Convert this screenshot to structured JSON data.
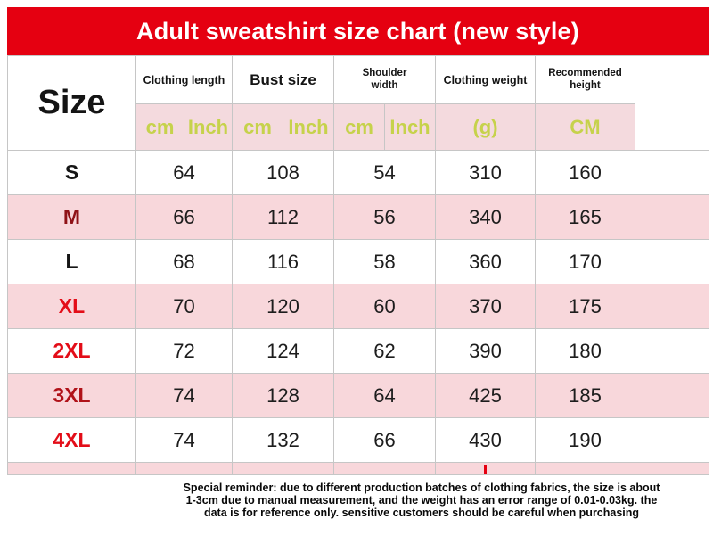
{
  "title": "Adult sweatshirt size chart (new style)",
  "chart_data": {
    "type": "table",
    "title": "Adult sweatshirt size chart (new style)",
    "corner_label": "Size",
    "column_groups": [
      {
        "label": "Clothing length",
        "units": [
          "cm",
          "Inch"
        ]
      },
      {
        "label": "Bust size",
        "units": [
          "cm",
          "Inch"
        ]
      },
      {
        "label": "Shoulder width",
        "units": [
          "cm",
          "Inch"
        ]
      },
      {
        "label": "Clothing weight",
        "units": [
          "(g)"
        ]
      },
      {
        "label": "Recommended height",
        "units": [
          "CM"
        ]
      }
    ],
    "rows": [
      {
        "size": "S",
        "values": [
          64,
          108,
          54,
          310,
          160
        ],
        "label_color": "#151515"
      },
      {
        "size": "M",
        "values": [
          66,
          112,
          56,
          340,
          165
        ],
        "label_color": "#8f1217"
      },
      {
        "size": "L",
        "values": [
          68,
          116,
          58,
          360,
          170
        ],
        "label_color": "#151515"
      },
      {
        "size": "XL",
        "values": [
          70,
          120,
          60,
          370,
          175
        ],
        "label_color": "#e30d18"
      },
      {
        "size": "2XL",
        "values": [
          72,
          124,
          62,
          390,
          180
        ],
        "label_color": "#e30d18"
      },
      {
        "size": "3XL",
        "values": [
          74,
          128,
          64,
          425,
          185
        ],
        "label_color": "#b01219"
      },
      {
        "size": "4XL",
        "values": [
          74,
          132,
          66,
          430,
          190
        ],
        "label_color": "#e30d18"
      }
    ]
  },
  "footer": {
    "lines": [
      "Special reminder: due to different production batches of clothing fabrics, the size is about",
      "1-3cm due to manual measurement, and the weight has an error range of 0.01-0.03kg. the",
      "data is for reference only. sensitive customers should be careful when purchasing"
    ]
  },
  "colors": {
    "banner": "#e50011",
    "pink": "#f8d7db",
    "unitbg": "#f4dade",
    "unit": "#c6d24b",
    "number": "#1d1d1d",
    "border": "#c6c6c6"
  }
}
